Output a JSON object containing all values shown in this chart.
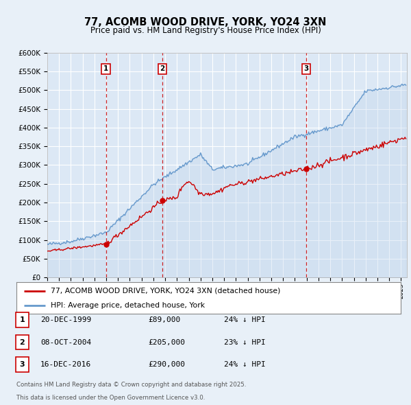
{
  "title": "77, ACOMB WOOD DRIVE, YORK, YO24 3XN",
  "subtitle": "Price paid vs. HM Land Registry's House Price Index (HPI)",
  "bg_color": "#e8f0f8",
  "plot_bg_color": "#dce8f5",
  "grid_color": "#ffffff",
  "hpi_color": "#6699cc",
  "hpi_fill_color": "#c0d4ec",
  "price_color": "#cc0000",
  "vline_color": "#cc0000",
  "ylim": [
    0,
    600000
  ],
  "yticks": [
    0,
    50000,
    100000,
    150000,
    200000,
    250000,
    300000,
    350000,
    400000,
    450000,
    500000,
    550000,
    600000
  ],
  "legend_label_price": "77, ACOMB WOOD DRIVE, YORK, YO24 3XN (detached house)",
  "legend_label_hpi": "HPI: Average price, detached house, York",
  "transactions": [
    {
      "num": 1,
      "date": "20-DEC-1999",
      "price": 89000,
      "hpi_note": "24% ↓ HPI",
      "x_year": 1999.97
    },
    {
      "num": 2,
      "date": "08-OCT-2004",
      "price": 205000,
      "hpi_note": "23% ↓ HPI",
      "x_year": 2004.77
    },
    {
      "num": 3,
      "date": "16-DEC-2016",
      "price": 290000,
      "hpi_note": "24% ↓ HPI",
      "x_year": 2016.96
    }
  ],
  "footnote1": "Contains HM Land Registry data © Crown copyright and database right 2025.",
  "footnote2": "This data is licensed under the Open Government Licence v3.0.",
  "xmin": 1995.0,
  "xmax": 2025.5
}
